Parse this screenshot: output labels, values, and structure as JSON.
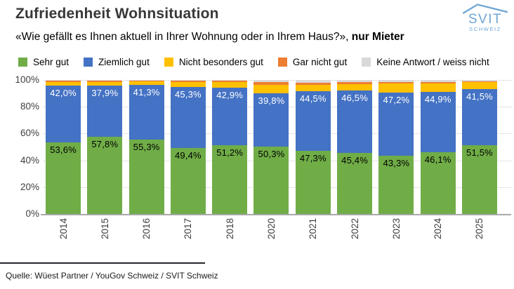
{
  "header": {
    "title": "Zufriedenheit Wohnsituation",
    "subtitle_quote": "«Wie gefällt es Ihnen aktuell in Ihrer Wohnung oder in Ihrem Haus?», ",
    "subtitle_bold": "nur Mieter",
    "logo": {
      "line1": "SVIT",
      "line2": "SCHWEIZ",
      "color": "#6fa5d4"
    }
  },
  "legend": [
    {
      "label": "Sehr gut",
      "color": "#70AD47"
    },
    {
      "label": "Ziemlich gut",
      "color": "#4472C4"
    },
    {
      "label": "Nicht besonders gut",
      "color": "#FFC000"
    },
    {
      "label": "Gar nicht gut",
      "color": "#ED7D31"
    },
    {
      "label": "Keine Antwort / weiss nicht",
      "color": "#D9D9D9"
    }
  ],
  "chart_data": {
    "type": "bar",
    "stacked": true,
    "ylim": [
      0,
      100
    ],
    "grid": "dotted horizontal at 20% steps",
    "legend_position": "top",
    "categories": [
      "2014",
      "2015",
      "2016",
      "2017",
      "2018",
      "2020",
      "2021",
      "2022",
      "2023",
      "2024",
      "2025"
    ],
    "y_ticks": [
      "0%",
      "20%",
      "40%",
      "60%",
      "80%",
      "100%"
    ],
    "series": [
      {
        "name": "Sehr gut",
        "color": "#70AD47",
        "label_color": "#000000",
        "values": [
          53.6,
          57.8,
          55.3,
          49.4,
          51.2,
          50.3,
          47.3,
          45.4,
          43.3,
          46.1,
          51.5
        ],
        "labels": [
          "53,6%",
          "57,8%",
          "55,3%",
          "49,4%",
          "51,2%",
          "50,3%",
          "47,3%",
          "45,4%",
          "43,3%",
          "46,1%",
          "51,5%"
        ]
      },
      {
        "name": "Ziemlich gut",
        "color": "#4472C4",
        "label_color": "#FFFFFF",
        "values": [
          42.0,
          37.9,
          41.3,
          45.3,
          42.9,
          39.8,
          44.5,
          46.5,
          47.2,
          44.9,
          41.5
        ],
        "labels": [
          "42,0%",
          "37,9%",
          "41,3%",
          "45,3%",
          "42,9%",
          "39,8%",
          "44,5%",
          "46,5%",
          "47,2%",
          "44,9%",
          "41,5%"
        ]
      },
      {
        "name": "Nicht besonders gut",
        "color": "#FFC000",
        "estimated": true,
        "values": [
          2.9,
          3.0,
          2.4,
          4.0,
          4.4,
          6.4,
          4.8,
          5.2,
          6.8,
          6.6,
          5.3
        ],
        "labels": null
      },
      {
        "name": "Gar nicht gut",
        "color": "#ED7D31",
        "estimated": true,
        "values": [
          1.0,
          0.8,
          0.6,
          0.8,
          0.8,
          2.0,
          1.4,
          1.4,
          1.0,
          0.9,
          0.7
        ],
        "labels": null
      },
      {
        "name": "Keine Antwort / weiss nicht",
        "color": "#D9D9D9",
        "estimated": true,
        "values": [
          0.5,
          0.5,
          0.4,
          0.5,
          0.7,
          1.5,
          2.0,
          1.5,
          1.7,
          1.5,
          1.0
        ],
        "labels": null
      }
    ]
  },
  "source": "Quelle: Wüest Partner / YouGov Schweiz / SVIT Schweiz"
}
